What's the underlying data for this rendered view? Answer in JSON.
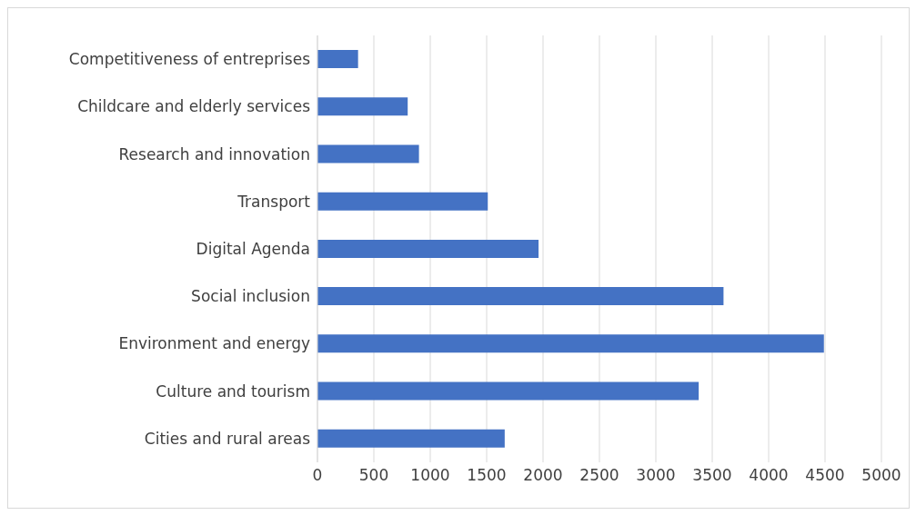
{
  "chart_data": {
    "type": "bar",
    "orientation": "horizontal",
    "categories": [
      "Competitiveness of entreprises",
      "Childcare and elderly services",
      "Research and innovation",
      "Transport",
      "Digital Agenda",
      "Social inclusion",
      "Environment and energy",
      "Culture and tourism",
      "Cities and rural areas"
    ],
    "values": [
      360,
      800,
      900,
      1510,
      1960,
      3600,
      4490,
      3380,
      1660
    ],
    "color": "#4472c4",
    "xlim": [
      0,
      5000
    ],
    "xticks": [
      0,
      500,
      1000,
      1500,
      2000,
      2500,
      3000,
      3500,
      4000,
      4500,
      5000
    ],
    "grid": "x"
  }
}
